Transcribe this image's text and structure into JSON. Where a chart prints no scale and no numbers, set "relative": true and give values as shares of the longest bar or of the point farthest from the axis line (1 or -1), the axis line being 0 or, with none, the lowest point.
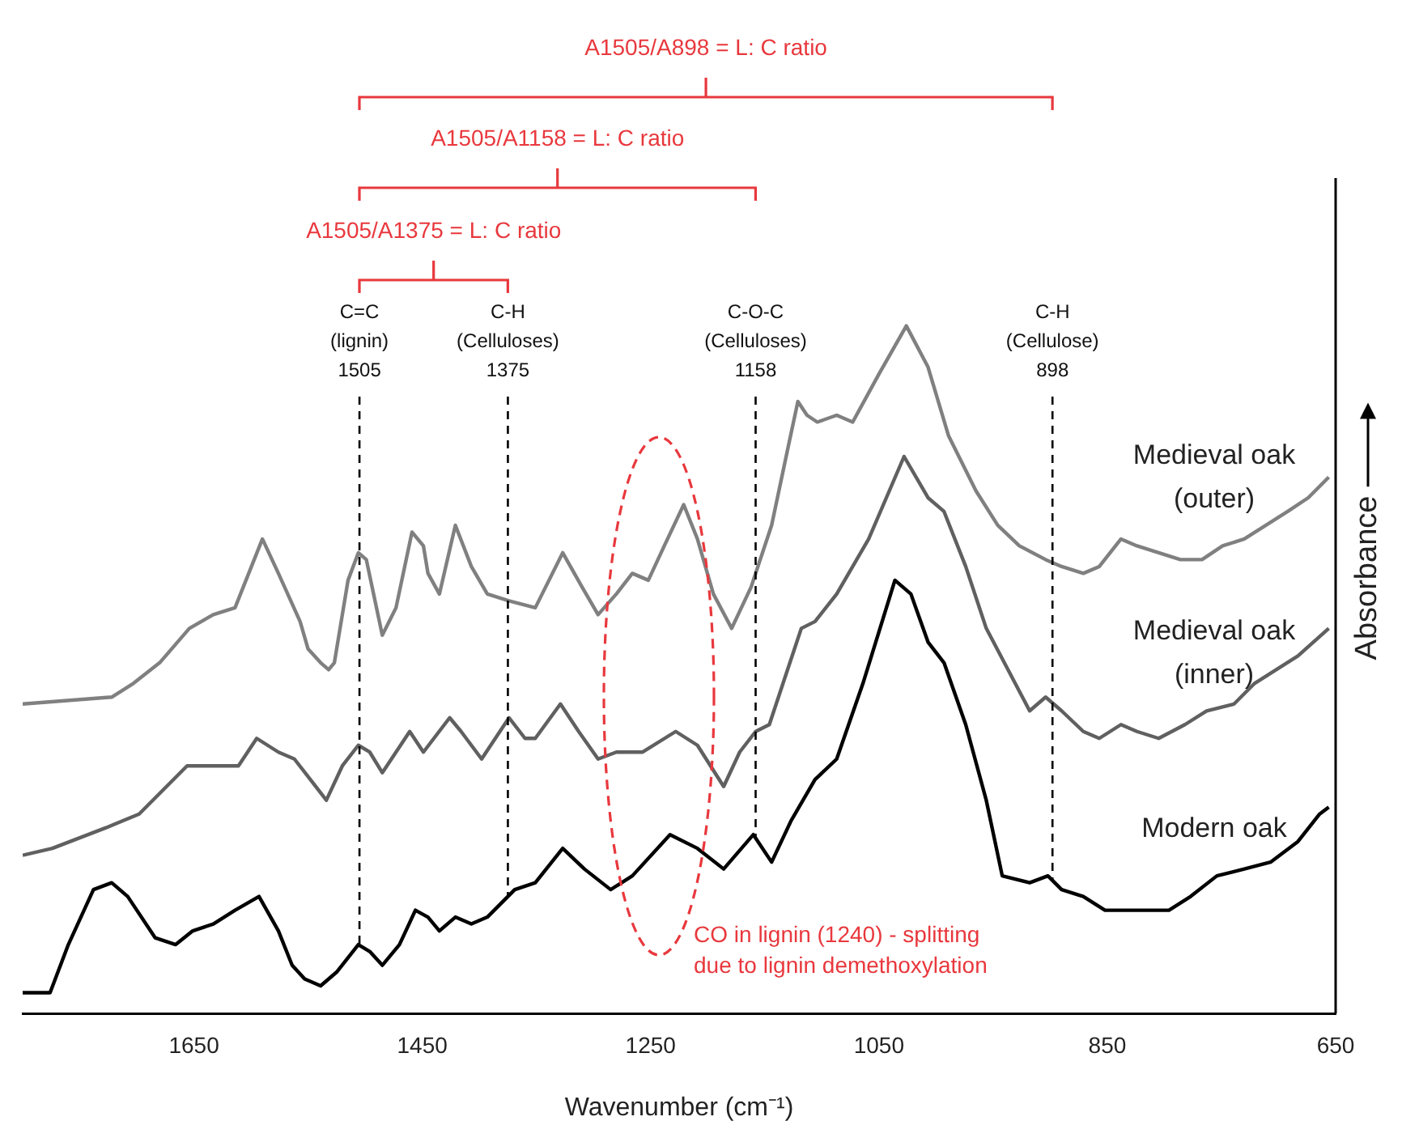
{
  "chart_data": {
    "type": "line",
    "relative": true,
    "xlabel": "Wavenumber (cm⁻¹)",
    "ylabel": "Absorbance",
    "xlim": [
      1800,
      650
    ],
    "xticks": [
      1650,
      1450,
      1250,
      1050,
      850,
      650
    ],
    "series": [
      {
        "name": "Medieval oak (outer)",
        "color": "#808080",
        "x": [
          1800,
          1722,
          1703,
          1680,
          1654,
          1633,
          1614,
          1590,
          1576,
          1557,
          1550,
          1539,
          1532,
          1527,
          1515,
          1506,
          1499,
          1485,
          1473,
          1459,
          1449,
          1445,
          1435,
          1421,
          1407,
          1393,
          1374,
          1351,
          1327,
          1310,
          1296,
          1280,
          1266,
          1252,
          1238,
          1221,
          1209,
          1195,
          1179,
          1162,
          1144,
          1130,
          1121,
          1113,
          1104,
          1087,
          1073,
          1050,
          1026,
          1007,
          989,
          965,
          946,
          927,
          904,
          890,
          871,
          857,
          838,
          824,
          805,
          786,
          767,
          749,
          730,
          711,
          692,
          674,
          656
        ],
        "values": [
          0.45,
          0.46,
          0.48,
          0.51,
          0.56,
          0.58,
          0.59,
          0.69,
          0.64,
          0.57,
          0.53,
          0.51,
          0.5,
          0.51,
          0.63,
          0.67,
          0.66,
          0.55,
          0.59,
          0.7,
          0.68,
          0.64,
          0.61,
          0.71,
          0.65,
          0.61,
          0.6,
          0.59,
          0.67,
          0.62,
          0.58,
          0.61,
          0.64,
          0.63,
          0.68,
          0.74,
          0.69,
          0.61,
          0.56,
          0.62,
          0.71,
          0.82,
          0.89,
          0.87,
          0.86,
          0.87,
          0.86,
          0.93,
          1.0,
          0.94,
          0.84,
          0.76,
          0.71,
          0.68,
          0.66,
          0.65,
          0.64,
          0.65,
          0.69,
          0.68,
          0.67,
          0.66,
          0.66,
          0.68,
          0.69,
          0.71,
          0.73,
          0.75,
          0.78
        ]
      },
      {
        "name": "Medieval oak (inner)",
        "color": "#606060",
        "x": [
          1800,
          1774,
          1727,
          1698,
          1680,
          1656,
          1642,
          1623,
          1611,
          1595,
          1576,
          1562,
          1548,
          1534,
          1520,
          1506,
          1496,
          1485,
          1473,
          1461,
          1449,
          1426,
          1416,
          1398,
          1374,
          1360,
          1351,
          1329,
          1313,
          1296,
          1280,
          1257,
          1228,
          1209,
          1186,
          1172,
          1158,
          1146,
          1134,
          1118,
          1106,
          1087,
          1059,
          1028,
          1007,
          993,
          974,
          956,
          937,
          918,
          904,
          890,
          871,
          857,
          838,
          824,
          805,
          782,
          763,
          739,
          721,
          702,
          683,
          656
        ],
        "values": [
          0.23,
          0.24,
          0.27,
          0.29,
          0.32,
          0.36,
          0.36,
          0.36,
          0.36,
          0.4,
          0.38,
          0.37,
          0.34,
          0.31,
          0.36,
          0.39,
          0.38,
          0.35,
          0.38,
          0.41,
          0.38,
          0.43,
          0.41,
          0.37,
          0.43,
          0.4,
          0.4,
          0.45,
          0.41,
          0.37,
          0.38,
          0.38,
          0.41,
          0.39,
          0.33,
          0.38,
          0.41,
          0.42,
          0.48,
          0.56,
          0.57,
          0.61,
          0.69,
          0.81,
          0.75,
          0.73,
          0.65,
          0.56,
          0.5,
          0.44,
          0.46,
          0.44,
          0.41,
          0.4,
          0.42,
          0.41,
          0.4,
          0.42,
          0.44,
          0.45,
          0.48,
          0.5,
          0.52,
          0.56
        ]
      },
      {
        "name": "Modern oak",
        "color": "#000000",
        "x": [
          1800,
          1776,
          1760,
          1738,
          1722,
          1708,
          1684,
          1666,
          1651,
          1633,
          1614,
          1593,
          1576,
          1564,
          1553,
          1539,
          1525,
          1506,
          1496,
          1485,
          1470,
          1456,
          1445,
          1435,
          1421,
          1407,
          1393,
          1369,
          1351,
          1327,
          1308,
          1285,
          1266,
          1233,
          1209,
          1186,
          1160,
          1144,
          1127,
          1106,
          1087,
          1064,
          1036,
          1022,
          1007,
          993,
          974,
          956,
          942,
          918,
          902,
          890,
          871,
          852,
          829,
          796,
          777,
          754,
          730,
          707,
          683,
          664,
          656
        ],
        "values": [
          0.03,
          0.03,
          0.1,
          0.18,
          0.19,
          0.17,
          0.11,
          0.1,
          0.12,
          0.13,
          0.15,
          0.17,
          0.12,
          0.07,
          0.05,
          0.04,
          0.06,
          0.1,
          0.09,
          0.07,
          0.1,
          0.15,
          0.14,
          0.12,
          0.14,
          0.13,
          0.14,
          0.18,
          0.19,
          0.24,
          0.21,
          0.18,
          0.2,
          0.26,
          0.24,
          0.21,
          0.26,
          0.22,
          0.28,
          0.34,
          0.37,
          0.48,
          0.63,
          0.61,
          0.54,
          0.51,
          0.42,
          0.31,
          0.2,
          0.19,
          0.2,
          0.18,
          0.17,
          0.15,
          0.15,
          0.15,
          0.17,
          0.2,
          0.21,
          0.22,
          0.25,
          0.29,
          0.3
        ]
      }
    ],
    "ref_lines": [
      {
        "axis": "x",
        "value": 1505,
        "label": "C=C (lignin) 1505",
        "color": "#000000",
        "line_style": "dashed"
      },
      {
        "axis": "x",
        "value": 1375,
        "label": "C-H (Celluloses) 1375",
        "color": "#000000",
        "line_style": "dashed"
      },
      {
        "axis": "x",
        "value": 1158,
        "label": "C-O-C (Celluloses) 1158",
        "color": "#000000",
        "line_style": "dashed"
      },
      {
        "axis": "x",
        "value": 898,
        "label": "C-H (Cellulose) 898",
        "color": "#000000",
        "line_style": "dashed"
      }
    ],
    "annotations": [
      "A1505/A898 = L: C ratio",
      "A1505/A1158 = L: C ratio",
      "A1505/A1375 = L: C ratio",
      "CO in lignin (1240) - splitting due to lignin demethoxylation"
    ]
  }
}
